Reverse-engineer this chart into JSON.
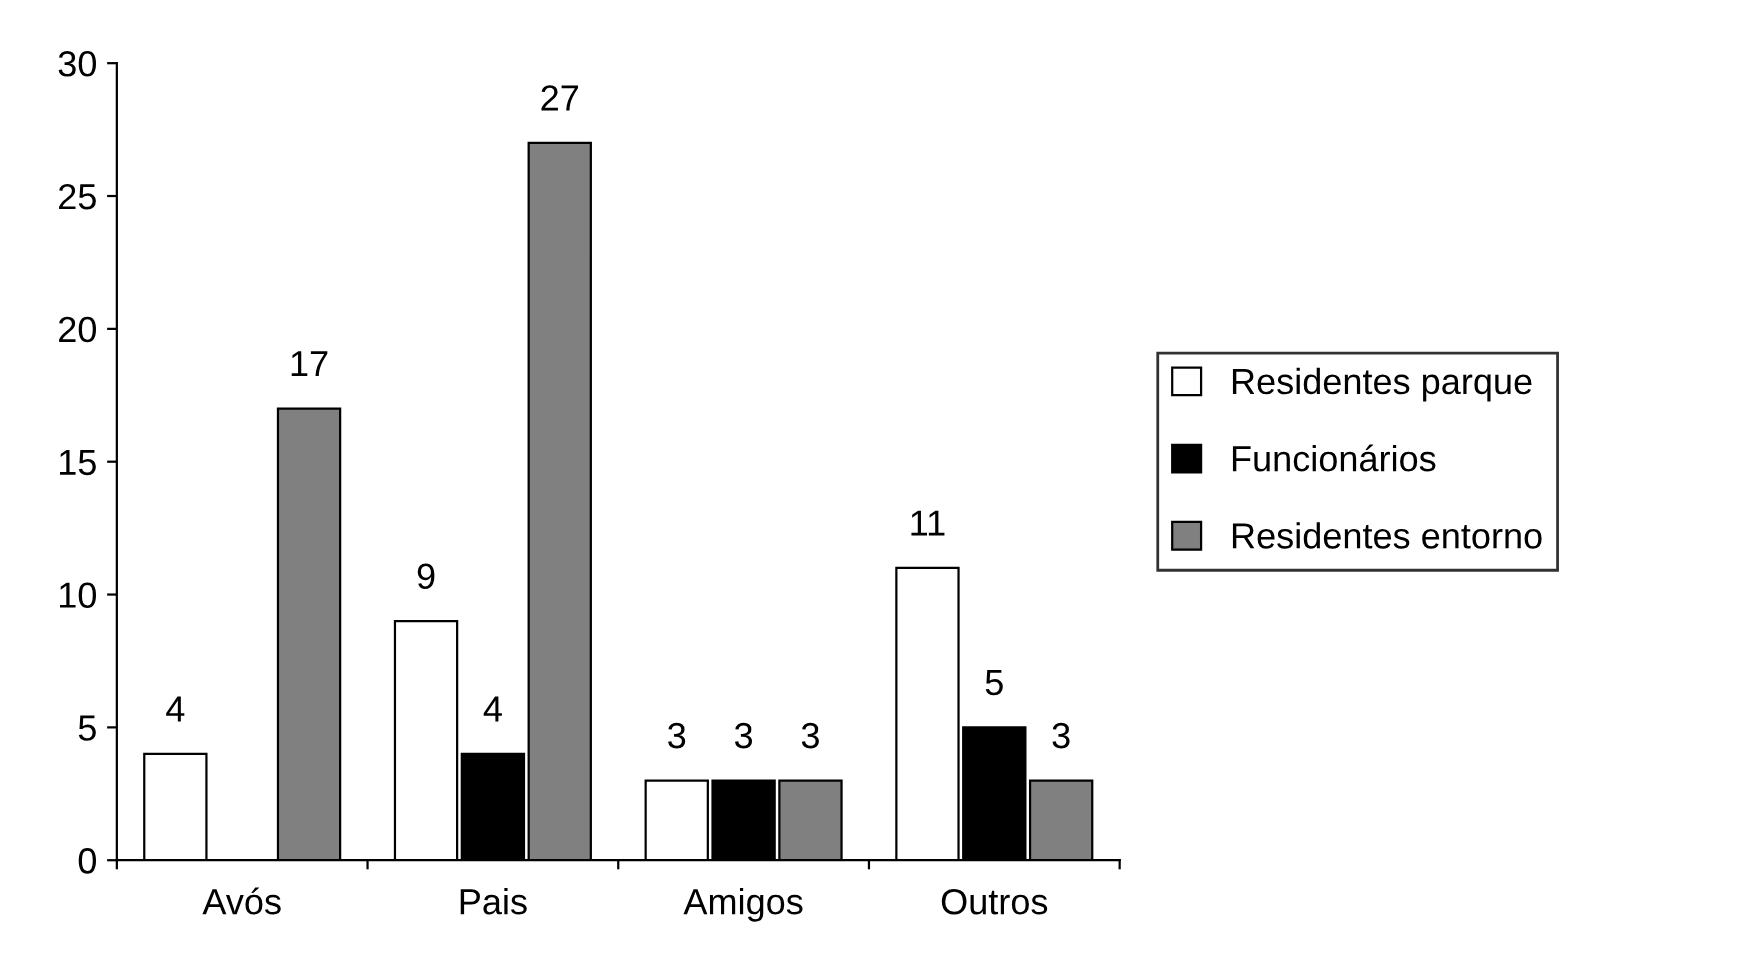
{
  "chart_data": {
    "type": "bar",
    "categories": [
      "Avós",
      "Pais",
      "Amigos",
      "Outros"
    ],
    "series": [
      {
        "name": "Residentes parque",
        "color": "#ffffff",
        "values": [
          4,
          9,
          3,
          11
        ]
      },
      {
        "name": "Funcionários",
        "color": "#000000",
        "values": [
          null,
          4,
          3,
          5
        ]
      },
      {
        "name": "Residentes entorno",
        "color": "#808080",
        "values": [
          17,
          27,
          3,
          3
        ]
      }
    ],
    "ylim": [
      0,
      30
    ],
    "yticks": [
      0,
      5,
      10,
      15,
      20,
      25,
      30
    ],
    "data_labels": true,
    "grid": false,
    "legend": "right"
  }
}
